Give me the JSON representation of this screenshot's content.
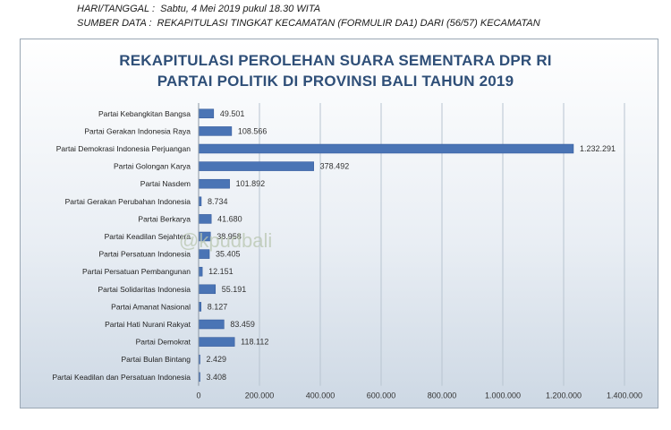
{
  "header": {
    "date_line": "HARI/TANGGAL :  Sabtu, 4 Mei 2019 pukul 18.30 WITA",
    "source_line": "SUMBER DATA :  REKAPITULASI TINGKAT KECAMATAN (FORMULIR DA1) DARI (56/57) KECAMATAN"
  },
  "watermark": "@kpudbali",
  "chart_data": {
    "type": "bar",
    "orientation": "horizontal",
    "title_line1": "REKAPITULASI PEROLEHAN SUARA SEMENTARA DPR RI",
    "title_line2": "PARTAI POLITIK DI PROVINSI BALI TAHUN 2019",
    "categories": [
      "Partai Kebangkitan Bangsa",
      "Partai Gerakan Indonesia Raya",
      "Partai Demokrasi Indonesia Perjuangan",
      "Partai Golongan Karya",
      "Partai Nasdem",
      "Partai Gerakan Perubahan Indonesia",
      "Partai Berkarya",
      "Partai Keadilan Sejahtera",
      "Partai Persatuan Indonesia",
      "Partai Persatuan Pembangunan",
      "Partai Solidaritas Indonesia",
      "Partai Amanat Nasional",
      "Partai Hati Nurani Rakyat",
      "Partai Demokrat",
      "Partai Bulan Bintang",
      "Partai Keadilan dan Persatuan Indonesia"
    ],
    "values": [
      49501,
      108566,
      1232291,
      378492,
      101892,
      8734,
      41680,
      38958,
      35405,
      12151,
      55191,
      8127,
      83459,
      118112,
      2429,
      3408
    ],
    "value_labels": [
      "49.501",
      "108.566",
      "1.232.291",
      "378.492",
      "101.892",
      "8.734",
      "41.680",
      "38.958",
      "35.405",
      "12.151",
      "55.191",
      "8.127",
      "83.459",
      "118.112",
      "2.429",
      "3.408"
    ],
    "xlim": [
      0,
      1400000
    ],
    "x_ticks": [
      0,
      200000,
      400000,
      600000,
      800000,
      1000000,
      1200000,
      1400000
    ],
    "x_tick_labels": [
      "0",
      "200.000",
      "400.000",
      "600.000",
      "800.000",
      "1.000.000",
      "1.200.000",
      "1.400.000"
    ],
    "grid": true,
    "colors": {
      "bar": "#4a74b5",
      "bar_edge": "#2f5597",
      "grid": "#b8c4d0",
      "title": "#2f4f78"
    }
  }
}
